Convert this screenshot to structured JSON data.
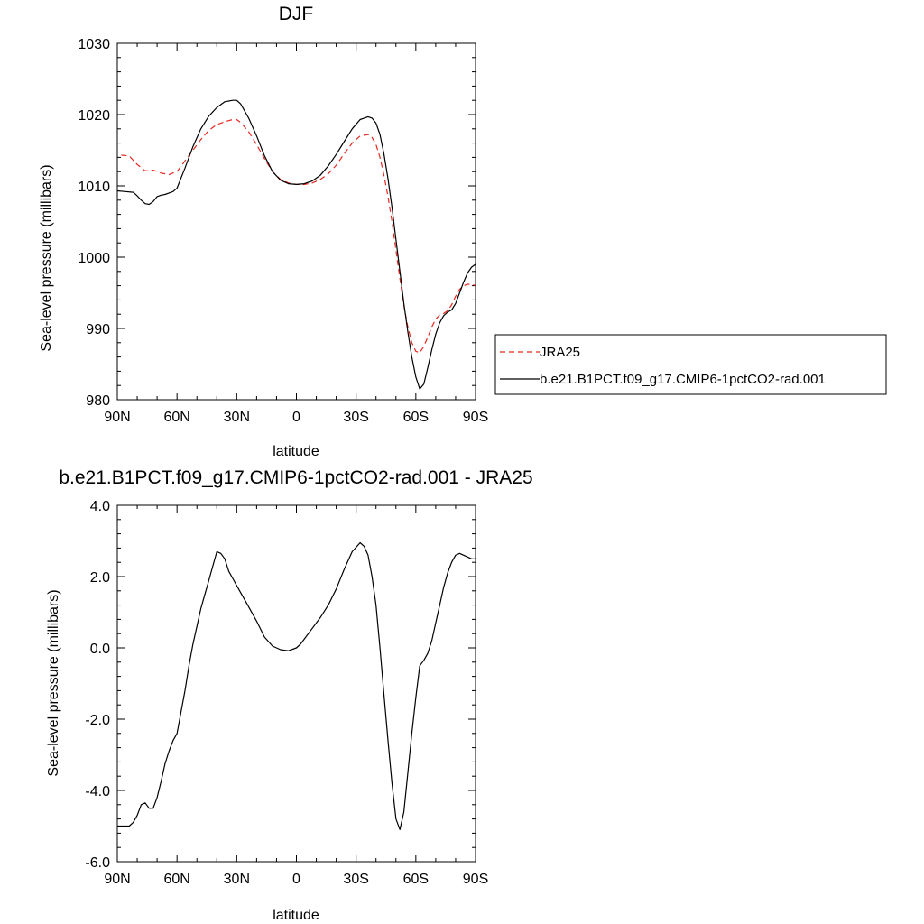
{
  "chart_data": [
    {
      "type": "line",
      "title": "DJF",
      "xlabel": "latitude",
      "ylabel": "Sea-level pressure (millibars)",
      "xlim": [
        -90,
        90
      ],
      "ylim": [
        980,
        1030
      ],
      "x_ticks": [
        {
          "value": -90,
          "label": "90N"
        },
        {
          "value": -60,
          "label": "60N"
        },
        {
          "value": -30,
          "label": "30N"
        },
        {
          "value": 0,
          "label": "0"
        },
        {
          "value": 30,
          "label": "30S"
        },
        {
          "value": 60,
          "label": "60S"
        },
        {
          "value": 90,
          "label": "90S"
        }
      ],
      "y_ticks": [
        {
          "value": 980,
          "label": "980"
        },
        {
          "value": 990,
          "label": "990"
        },
        {
          "value": 1000,
          "label": "1000"
        },
        {
          "value": 1010,
          "label": "1010"
        },
        {
          "value": 1020,
          "label": "1020"
        },
        {
          "value": 1030,
          "label": "1030"
        }
      ],
      "legend_position": "right",
      "series": [
        {
          "name": "JRA25",
          "color": "#e8261f",
          "dash": "dashed",
          "x": [
            -88,
            -84,
            -80,
            -76,
            -72,
            -68,
            -64,
            -60,
            -56,
            -52,
            -48,
            -44,
            -40,
            -36,
            -32,
            -30,
            -28,
            -24,
            -20,
            -16,
            -12,
            -8,
            -4,
            0,
            4,
            8,
            12,
            16,
            20,
            24,
            28,
            32,
            36,
            38,
            40,
            42,
            44,
            46,
            48,
            50,
            52,
            54,
            56,
            58,
            60,
            62,
            64,
            66,
            68,
            70,
            72,
            74,
            76,
            78,
            80,
            82,
            84,
            86,
            88,
            90
          ],
          "y": [
            1014.3,
            1014.2,
            1013.0,
            1012.1,
            1012.2,
            1011.8,
            1011.6,
            1012.0,
            1013.5,
            1015.0,
            1016.5,
            1017.8,
            1018.6,
            1019.0,
            1019.3,
            1019.3,
            1018.9,
            1017.6,
            1015.8,
            1013.8,
            1012.0,
            1010.9,
            1010.4,
            1010.2,
            1010.2,
            1010.4,
            1010.9,
            1011.7,
            1012.9,
            1014.5,
            1016.0,
            1017.0,
            1017.2,
            1016.8,
            1015.8,
            1014.0,
            1011.5,
            1008.5,
            1005.0,
            1001.0,
            997.0,
            993.2,
            990.2,
            988.0,
            986.8,
            986.6,
            987.5,
            988.8,
            990.2,
            991.3,
            991.9,
            992.1,
            992.5,
            993.3,
            994.5,
            995.5,
            996.0,
            996.2,
            996.2,
            996.0
          ]
        },
        {
          "name": "b.e21.B1PCT.f09_g17.CMIP6-1pctCO2-rad.001",
          "color": "#000000",
          "dash": "solid",
          "x": [
            -90,
            -86,
            -82,
            -80,
            -78,
            -76,
            -74,
            -72,
            -70,
            -68,
            -66,
            -64,
            -62,
            -60,
            -56,
            -52,
            -48,
            -44,
            -40,
            -36,
            -32,
            -30,
            -28,
            -24,
            -20,
            -16,
            -12,
            -8,
            -4,
            0,
            4,
            8,
            12,
            16,
            20,
            24,
            28,
            32,
            36,
            38,
            40,
            42,
            44,
            46,
            48,
            50,
            52,
            54,
            56,
            58,
            60,
            62,
            64,
            66,
            68,
            70,
            72,
            74,
            76,
            78,
            80,
            82,
            84,
            86,
            88,
            90
          ],
          "y": [
            1009.3,
            1009.2,
            1009.1,
            1008.6,
            1008.0,
            1007.5,
            1007.4,
            1007.8,
            1008.5,
            1008.7,
            1008.8,
            1009.0,
            1009.2,
            1009.7,
            1012.5,
            1015.5,
            1018.0,
            1019.8,
            1021.0,
            1021.8,
            1022.0,
            1022.0,
            1021.5,
            1019.5,
            1017.0,
            1014.2,
            1012.0,
            1010.8,
            1010.3,
            1010.2,
            1010.3,
            1010.7,
            1011.5,
            1012.8,
            1014.4,
            1016.2,
            1018.0,
            1019.3,
            1019.7,
            1019.5,
            1018.8,
            1017.2,
            1014.5,
            1011.0,
            1007.0,
            1002.5,
            998.0,
            993.5,
            989.5,
            986.0,
            983.2,
            981.5,
            982.2,
            984.5,
            987.0,
            989.2,
            990.8,
            991.8,
            992.3,
            992.6,
            993.5,
            995.0,
            996.5,
            997.8,
            998.6,
            999.0
          ]
        }
      ]
    },
    {
      "type": "line",
      "title": "b.e21.B1PCT.f09_g17.CMIP6-1pctCO2-rad.001 - JRA25",
      "xlabel": "latitude",
      "ylabel": "Sea-level pressure (millibars)",
      "xlim": [
        -90,
        90
      ],
      "ylim": [
        -6,
        4
      ],
      "x_ticks": [
        {
          "value": -90,
          "label": "90N"
        },
        {
          "value": -60,
          "label": "60N"
        },
        {
          "value": -30,
          "label": "30N"
        },
        {
          "value": 0,
          "label": "0"
        },
        {
          "value": 30,
          "label": "30S"
        },
        {
          "value": 60,
          "label": "60S"
        },
        {
          "value": 90,
          "label": "90S"
        }
      ],
      "y_ticks": [
        {
          "value": -6,
          "label": "-6.0"
        },
        {
          "value": -4,
          "label": "-4.0"
        },
        {
          "value": -2,
          "label": "-2.0"
        },
        {
          "value": 0,
          "label": "0.0"
        },
        {
          "value": 2,
          "label": "2.0"
        },
        {
          "value": 4,
          "label": "4.0"
        }
      ],
      "series": [
        {
          "color": "#000000",
          "dash": "solid",
          "x": [
            -90,
            -86,
            -84,
            -82,
            -80,
            -78,
            -76,
            -74,
            -72,
            -70,
            -68,
            -66,
            -64,
            -62,
            -60,
            -58,
            -56,
            -54,
            -52,
            -50,
            -48,
            -46,
            -44,
            -42,
            -40,
            -38,
            -36,
            -34,
            -32,
            -30,
            -28,
            -24,
            -20,
            -16,
            -12,
            -8,
            -4,
            0,
            2,
            4,
            8,
            12,
            16,
            20,
            24,
            28,
            32,
            34,
            36,
            38,
            40,
            42,
            44,
            46,
            48,
            50,
            52,
            54,
            56,
            58,
            60,
            62,
            64,
            66,
            68,
            70,
            72,
            74,
            76,
            78,
            80,
            82,
            84,
            86,
            88,
            90
          ],
          "y": [
            -5.0,
            -5.0,
            -5.0,
            -4.9,
            -4.7,
            -4.4,
            -4.35,
            -4.5,
            -4.5,
            -4.2,
            -3.75,
            -3.25,
            -2.9,
            -2.6,
            -2.4,
            -1.8,
            -1.2,
            -0.5,
            0.1,
            0.6,
            1.1,
            1.5,
            1.9,
            2.3,
            2.7,
            2.65,
            2.5,
            2.15,
            1.95,
            1.75,
            1.55,
            1.15,
            0.75,
            0.3,
            0.05,
            -0.05,
            -0.08,
            0.0,
            0.1,
            0.25,
            0.55,
            0.85,
            1.2,
            1.65,
            2.2,
            2.7,
            2.95,
            2.85,
            2.6,
            2.0,
            1.2,
            0.0,
            -1.3,
            -2.6,
            -3.8,
            -4.8,
            -5.1,
            -4.6,
            -3.5,
            -2.4,
            -1.4,
            -0.5,
            -0.35,
            -0.15,
            0.2,
            0.7,
            1.2,
            1.7,
            2.1,
            2.4,
            2.6,
            2.65,
            2.6,
            2.55,
            2.5,
            2.5
          ]
        }
      ]
    }
  ]
}
